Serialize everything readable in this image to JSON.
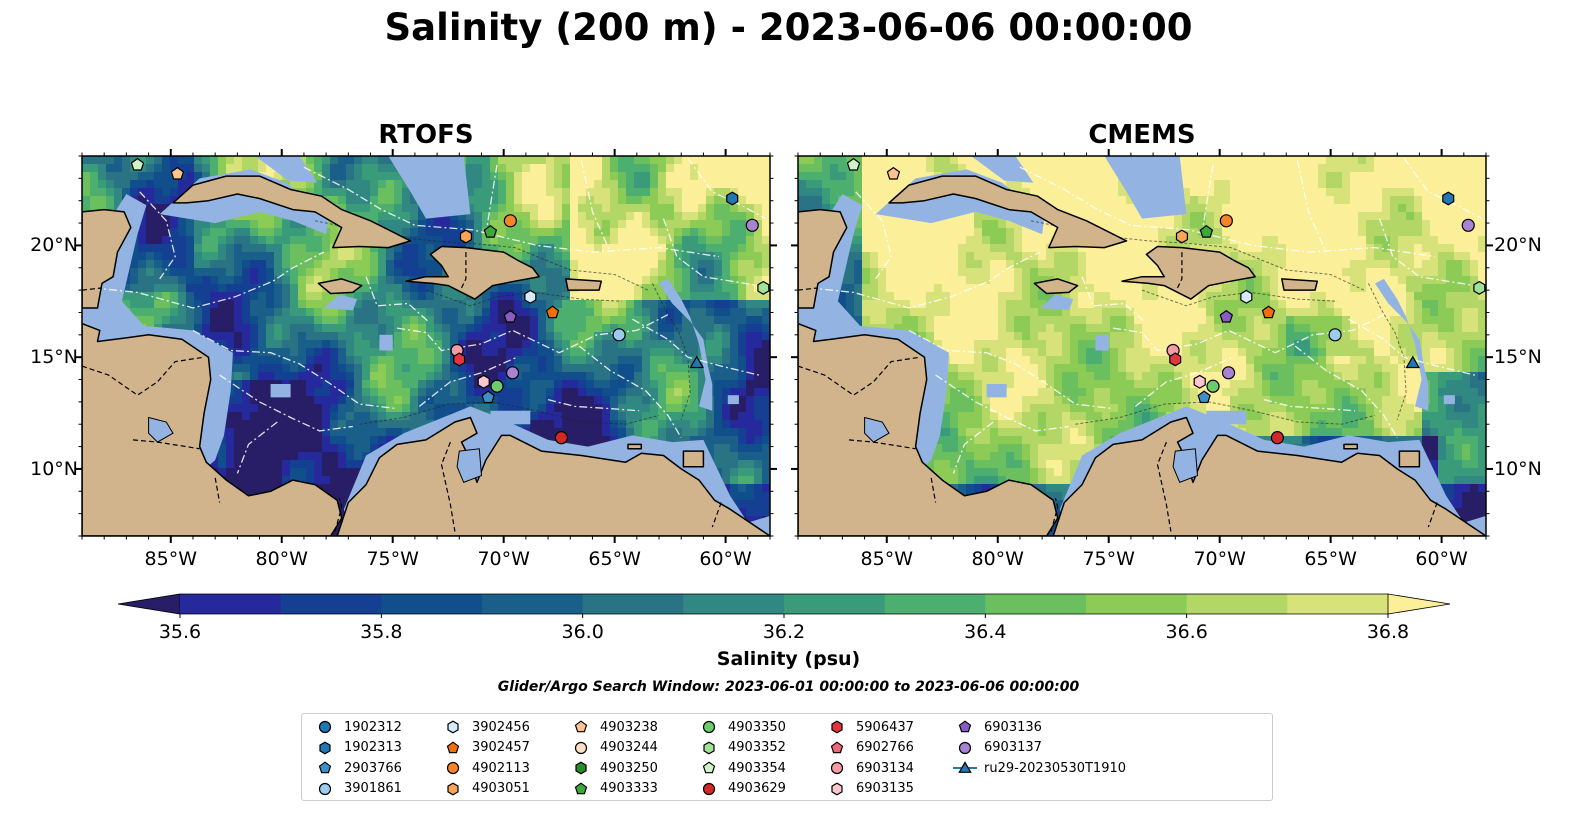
{
  "suptitle": "Salinity (200 m) - 2023-06-06 00:00:00",
  "panels": [
    {
      "title": "RTOFS",
      "palette": "rtofs"
    },
    {
      "title": "CMEMS",
      "palette": "cmems"
    }
  ],
  "axes": {
    "lon_ticks": [
      "85°W",
      "80°W",
      "75°W",
      "70°W",
      "65°W",
      "60°W"
    ],
    "lat_ticks": [
      "20°N",
      "15°N",
      "10°N"
    ],
    "lon_range": [
      -89.0,
      -58.0
    ],
    "lat_range": [
      7.0,
      24.0
    ]
  },
  "colorbar": {
    "label": "Salinity (psu)",
    "ticks": [
      "35.6",
      "35.8",
      "36.0",
      "36.2",
      "36.4",
      "36.6",
      "36.8"
    ],
    "range": [
      35.5,
      36.9
    ],
    "colors": [
      "#281e67",
      "#26299b",
      "#143f92",
      "#104e8c",
      "#1a5f8a",
      "#2a7385",
      "#318782",
      "#3a9b7b",
      "#4cae6f",
      "#6cbf5f",
      "#8dcb57",
      "#b2d766",
      "#d7e37a",
      "#fcef99"
    ],
    "extend": "both"
  },
  "colors": {
    "land": "#d1b48c",
    "shelf": "#93b4e2",
    "coast": "#000000"
  },
  "search_window": "Glider/Argo Search Window: 2023-06-01 00:00:00 to 2023-06-06 00:00:00",
  "legend": [
    {
      "label": "1902312",
      "marker": "circle",
      "color": "#1f77b4"
    },
    {
      "label": "1902313",
      "marker": "hexagon",
      "color": "#1f77b4"
    },
    {
      "label": "2903766",
      "marker": "pentagon",
      "color": "#3e8fc8"
    },
    {
      "label": "3901861",
      "marker": "circle",
      "color": "#9ccbee"
    },
    {
      "label": "3902456",
      "marker": "hexagon",
      "color": "#d6ecfc"
    },
    {
      "label": "3902457",
      "marker": "pentagon",
      "color": "#f46d0b"
    },
    {
      "label": "4902113",
      "marker": "circle",
      "color": "#f4852a"
    },
    {
      "label": "4903051",
      "marker": "hexagon",
      "color": "#f9a557"
    },
    {
      "label": "4903238",
      "marker": "pentagon",
      "color": "#fbc68e"
    },
    {
      "label": "4903244",
      "marker": "circle",
      "color": "#fde0c4"
    },
    {
      "label": "4903250",
      "marker": "hexagon",
      "color": "#2a8b2a"
    },
    {
      "label": "4903333",
      "marker": "pentagon",
      "color": "#3aa93a"
    },
    {
      "label": "4903350",
      "marker": "circle",
      "color": "#6ccb6c"
    },
    {
      "label": "4903352",
      "marker": "hexagon",
      "color": "#a1e19a"
    },
    {
      "label": "4903354",
      "marker": "pentagon",
      "color": "#cff3c9"
    },
    {
      "label": "4903629",
      "marker": "circle",
      "color": "#d62728"
    },
    {
      "label": "5906437",
      "marker": "hexagon",
      "color": "#e0363c"
    },
    {
      "label": "6902766",
      "marker": "pentagon",
      "color": "#ec6a78"
    },
    {
      "label": "6903134",
      "marker": "circle",
      "color": "#f69aa5"
    },
    {
      "label": "6903135",
      "marker": "hexagon",
      "color": "#fbc7ce"
    },
    {
      "label": "6903136",
      "marker": "pentagon",
      "color": "#8a5cc0"
    },
    {
      "label": "6903137",
      "marker": "circle",
      "color": "#a783d2"
    },
    {
      "label": "ru29-20230530T1910",
      "marker": "triangle-line",
      "color": "#1f77b4"
    }
  ],
  "floats": [
    {
      "id": "4903354",
      "lon": -86.5,
      "lat": 23.6
    },
    {
      "id": "4903238",
      "lon": -84.7,
      "lat": 23.2
    },
    {
      "id": "1902313",
      "lon": -59.7,
      "lat": 22.1
    },
    {
      "id": "6903137",
      "lon": -58.8,
      "lat": 20.9
    },
    {
      "id": "4902113",
      "lon": -69.7,
      "lat": 21.1
    },
    {
      "id": "4903051",
      "lon": -71.7,
      "lat": 20.4
    },
    {
      "id": "4903333",
      "lon": -70.6,
      "lat": 20.6
    },
    {
      "id": "3902456",
      "lon": -68.8,
      "lat": 17.7
    },
    {
      "id": "3902457",
      "lon": -67.8,
      "lat": 17.0
    },
    {
      "id": "6903136",
      "lon": -69.7,
      "lat": 16.8
    },
    {
      "id": "3901861",
      "lon": -64.8,
      "lat": 16.0
    },
    {
      "id": "4903352",
      "lon": -58.3,
      "lat": 18.1
    },
    {
      "id": "ru29-20230530T1910",
      "lon": -61.3,
      "lat": 14.7
    },
    {
      "id": "6903134",
      "lon": -72.1,
      "lat": 15.3
    },
    {
      "id": "5906437",
      "lon": -72.0,
      "lat": 14.9
    },
    {
      "id": "6903135",
      "lon": -70.9,
      "lat": 13.9
    },
    {
      "id": "4903350",
      "lon": -70.3,
      "lat": 13.7
    },
    {
      "id": "6903137",
      "lon": -69.6,
      "lat": 14.3
    },
    {
      "id": "2903766",
      "lon": -70.7,
      "lat": 13.2
    },
    {
      "id": "4903629",
      "lon": -67.4,
      "lat": 11.4
    }
  ]
}
